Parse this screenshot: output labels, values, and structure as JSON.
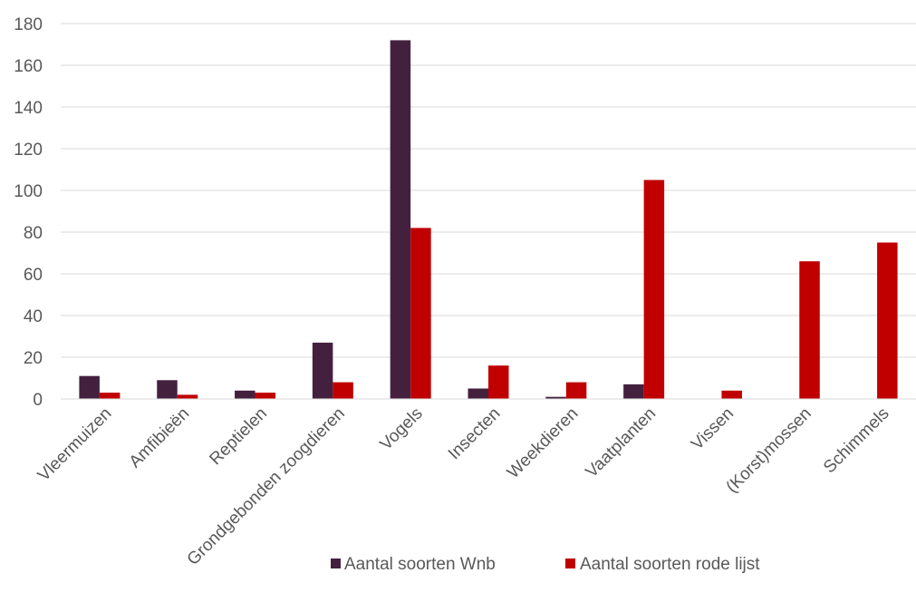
{
  "chart_data": {
    "type": "bar",
    "title": "",
    "xlabel": "",
    "ylabel": "",
    "ylim": [
      0,
      180
    ],
    "yticks": [
      0,
      20,
      40,
      60,
      80,
      100,
      120,
      140,
      160,
      180
    ],
    "grid": true,
    "legend_position": "bottom",
    "categories": [
      "Vleermuizen",
      "Amfibieën",
      "Reptielen",
      "Grondgebonden zoogdieren",
      "Vogels",
      "Insecten",
      "Weekdieren",
      "Vaatplanten",
      "Vissen",
      "(Korst)mossen",
      "Schimmels"
    ],
    "series": [
      {
        "name": "Aantal soorten Wnb",
        "color": "#44203f",
        "values": [
          11,
          9,
          4,
          27,
          172,
          5,
          1,
          7,
          0,
          0,
          0
        ]
      },
      {
        "name": "Aantal soorten rode lijst",
        "color": "#c00000",
        "values": [
          3,
          2,
          3,
          8,
          82,
          16,
          8,
          105,
          4,
          66,
          75
        ]
      }
    ]
  }
}
